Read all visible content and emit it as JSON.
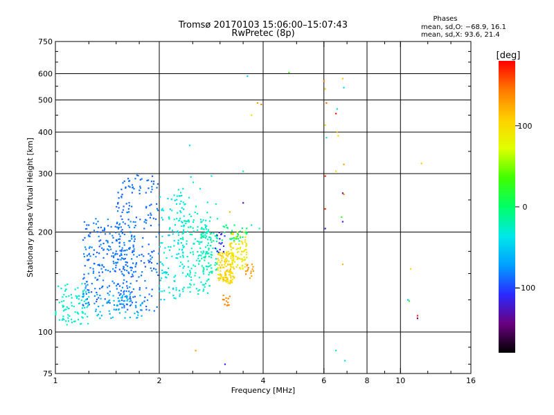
{
  "chart_data": {
    "type": "scatter",
    "title": "Tromsø 20170103 15:06:00–15:07:43",
    "subtitle": "RwPretec (8p)",
    "xlabel": "Frequency [MHz]",
    "ylabel": "Stationary phase Virtual Height [km]",
    "x_scale": "log",
    "y_scale": "log",
    "xlim": [
      1,
      16
    ],
    "ylim": [
      75,
      750
    ],
    "x_ticks": [
      {
        "value": 1,
        "label": "1"
      },
      {
        "value": 2,
        "label": "2"
      },
      {
        "value": 4,
        "label": "4"
      },
      {
        "value": 6,
        "label": "6"
      },
      {
        "value": 8,
        "label": "8"
      },
      {
        "value": 10,
        "label": "10"
      },
      {
        "value": 16,
        "label": "16"
      }
    ],
    "x_minor_ticks": [
      1.25,
      1.5,
      1.75,
      2.5,
      3,
      3.5,
      5,
      7,
      9,
      12,
      14
    ],
    "x_grid": [
      2,
      4,
      6,
      8,
      10
    ],
    "y_ticks": [
      {
        "value": 75,
        "label": "75"
      },
      {
        "value": 100,
        "label": "100"
      },
      {
        "value": 200,
        "label": "200"
      },
      {
        "value": 300,
        "label": "300"
      },
      {
        "value": 400,
        "label": "400"
      },
      {
        "value": 500,
        "label": "500"
      },
      {
        "value": 600,
        "label": "600"
      },
      {
        "value": 750,
        "label": "750"
      }
    ],
    "y_minor_ticks": [
      80,
      90,
      125,
      150,
      175,
      250,
      350,
      450,
      550,
      650,
      700
    ],
    "y_grid": [
      100,
      200,
      300,
      400,
      500,
      600
    ],
    "legend": {
      "title": "Phases",
      "lines": [
        "mean, sd,O: −68.9, 16.1",
        "mean, sd,X:  93.6, 21.4"
      ],
      "placement": "top-right"
    },
    "colorbar": {
      "label": "[deg]",
      "range": [
        -180,
        180
      ],
      "ticks": [
        {
          "value": 100,
          "label": "100"
        },
        {
          "value": 0,
          "label": "0"
        },
        {
          "value": -100,
          "label": "−100"
        }
      ],
      "colormap": [
        "#000000",
        "#6a0080",
        "#2a2aff",
        "#00a0ff",
        "#00e8e8",
        "#00ff66",
        "#40ff00",
        "#e0ff00",
        "#ffd000",
        "#ff7a00",
        "#ff0000"
      ]
    },
    "clusters": [
      {
        "f": [
          1.0,
          1.25
        ],
        "h": [
          105,
          140
        ],
        "phase": [
          -35,
          -25
        ],
        "n": 90
      },
      {
        "f": [
          1.2,
          1.7
        ],
        "h": [
          120,
          220
        ],
        "phase": [
          -95,
          -75
        ],
        "n": 260
      },
      {
        "f": [
          1.5,
          2.0
        ],
        "h": [
          115,
          300
        ],
        "phase": [
          -95,
          -80
        ],
        "n": 200
      },
      {
        "f": [
          1.3,
          1.8
        ],
        "h": [
          110,
          130
        ],
        "phase": [
          -70,
          -50
        ],
        "n": 60
      },
      {
        "f": [
          2.0,
          2.4
        ],
        "h": [
          125,
          260
        ],
        "phase": [
          -50,
          -30
        ],
        "n": 120
      },
      {
        "f": [
          2.3,
          2.8
        ],
        "h": [
          130,
          220
        ],
        "phase": [
          -35,
          -20
        ],
        "n": 140
      },
      {
        "f": [
          2.6,
          2.95
        ],
        "h": [
          150,
          200
        ],
        "phase": [
          -30,
          -10
        ],
        "n": 70
      },
      {
        "f": [
          2.95,
          3.3
        ],
        "h": [
          140,
          175
        ],
        "phase": [
          90,
          115
        ],
        "n": 120
      },
      {
        "f": [
          3.2,
          3.6
        ],
        "h": [
          155,
          200
        ],
        "phase": [
          80,
          100
        ],
        "n": 90
      },
      {
        "f": [
          3.0,
          3.6
        ],
        "h": [
          185,
          210
        ],
        "phase": [
          -15,
          0
        ],
        "n": 30
      },
      {
        "f": [
          3.05,
          3.2
        ],
        "h": [
          120,
          130
        ],
        "phase": [
          130,
          145
        ],
        "n": 12
      },
      {
        "f": [
          3.55,
          3.75
        ],
        "h": [
          145,
          160
        ],
        "phase": [
          125,
          140
        ],
        "n": 15
      },
      {
        "f": [
          2.9,
          3.1
        ],
        "h": [
          170,
          200
        ],
        "phase": [
          -120,
          -100
        ],
        "n": 15
      },
      {
        "f": [
          2.1,
          3.0
        ],
        "h": [
          215,
          300
        ],
        "phase": [
          -40,
          -25
        ],
        "n": 25
      }
    ],
    "points": [
      {
        "f": 3.2,
        "h": 230,
        "phase": 120
      },
      {
        "f": 3.5,
        "h": 245,
        "phase": -130
      },
      {
        "f": 3.7,
        "h": 210,
        "phase": -40
      },
      {
        "f": 3.9,
        "h": 205,
        "phase": -20
      },
      {
        "f": 3.6,
        "h": 590,
        "phase": -45
      },
      {
        "f": 4.75,
        "h": 605,
        "phase": 30
      },
      {
        "f": 3.85,
        "h": 490,
        "phase": 130
      },
      {
        "f": 3.95,
        "h": 485,
        "phase": 140
      },
      {
        "f": 3.7,
        "h": 450,
        "phase": 95
      },
      {
        "f": 2.45,
        "h": 365,
        "phase": -40
      },
      {
        "f": 3.5,
        "h": 305,
        "phase": -20
      },
      {
        "f": 2.55,
        "h": 88,
        "phase": 125
      },
      {
        "f": 3.1,
        "h": 80,
        "phase": -110
      },
      {
        "f": 6.0,
        "h": 570,
        "phase": 135
      },
      {
        "f": 6.05,
        "h": 540,
        "phase": 110
      },
      {
        "f": 6.1,
        "h": 490,
        "phase": 150
      },
      {
        "f": 6.05,
        "h": 420,
        "phase": 100
      },
      {
        "f": 6.1,
        "h": 385,
        "phase": -40
      },
      {
        "f": 6.05,
        "h": 295,
        "phase": 170
      },
      {
        "f": 6.05,
        "h": 235,
        "phase": 170
      },
      {
        "f": 6.05,
        "h": 205,
        "phase": -120
      },
      {
        "f": 6.55,
        "h": 470,
        "phase": -45
      },
      {
        "f": 6.5,
        "h": 455,
        "phase": 175
      },
      {
        "f": 6.55,
        "h": 400,
        "phase": 120
      },
      {
        "f": 6.6,
        "h": 390,
        "phase": 100
      },
      {
        "f": 6.5,
        "h": 305,
        "phase": 100
      },
      {
        "f": 6.8,
        "h": 580,
        "phase": 110
      },
      {
        "f": 6.85,
        "h": 545,
        "phase": -45
      },
      {
        "f": 6.85,
        "h": 320,
        "phase": 130
      },
      {
        "f": 6.8,
        "h": 262,
        "phase": -140
      },
      {
        "f": 6.85,
        "h": 260,
        "phase": 140
      },
      {
        "f": 6.75,
        "h": 222,
        "phase": 25
      },
      {
        "f": 6.8,
        "h": 215,
        "phase": -115
      },
      {
        "f": 6.8,
        "h": 160,
        "phase": 120
      },
      {
        "f": 6.5,
        "h": 88,
        "phase": -40
      },
      {
        "f": 6.9,
        "h": 82,
        "phase": -40
      },
      {
        "f": 10.5,
        "h": 125,
        "phase": -50
      },
      {
        "f": 10.6,
        "h": 124,
        "phase": 20
      },
      {
        "f": 11.2,
        "h": 112,
        "phase": 170
      },
      {
        "f": 11.2,
        "h": 110,
        "phase": -150
      },
      {
        "f": 10.7,
        "h": 155,
        "phase": 100
      },
      {
        "f": 11.5,
        "h": 322,
        "phase": 110
      }
    ]
  }
}
